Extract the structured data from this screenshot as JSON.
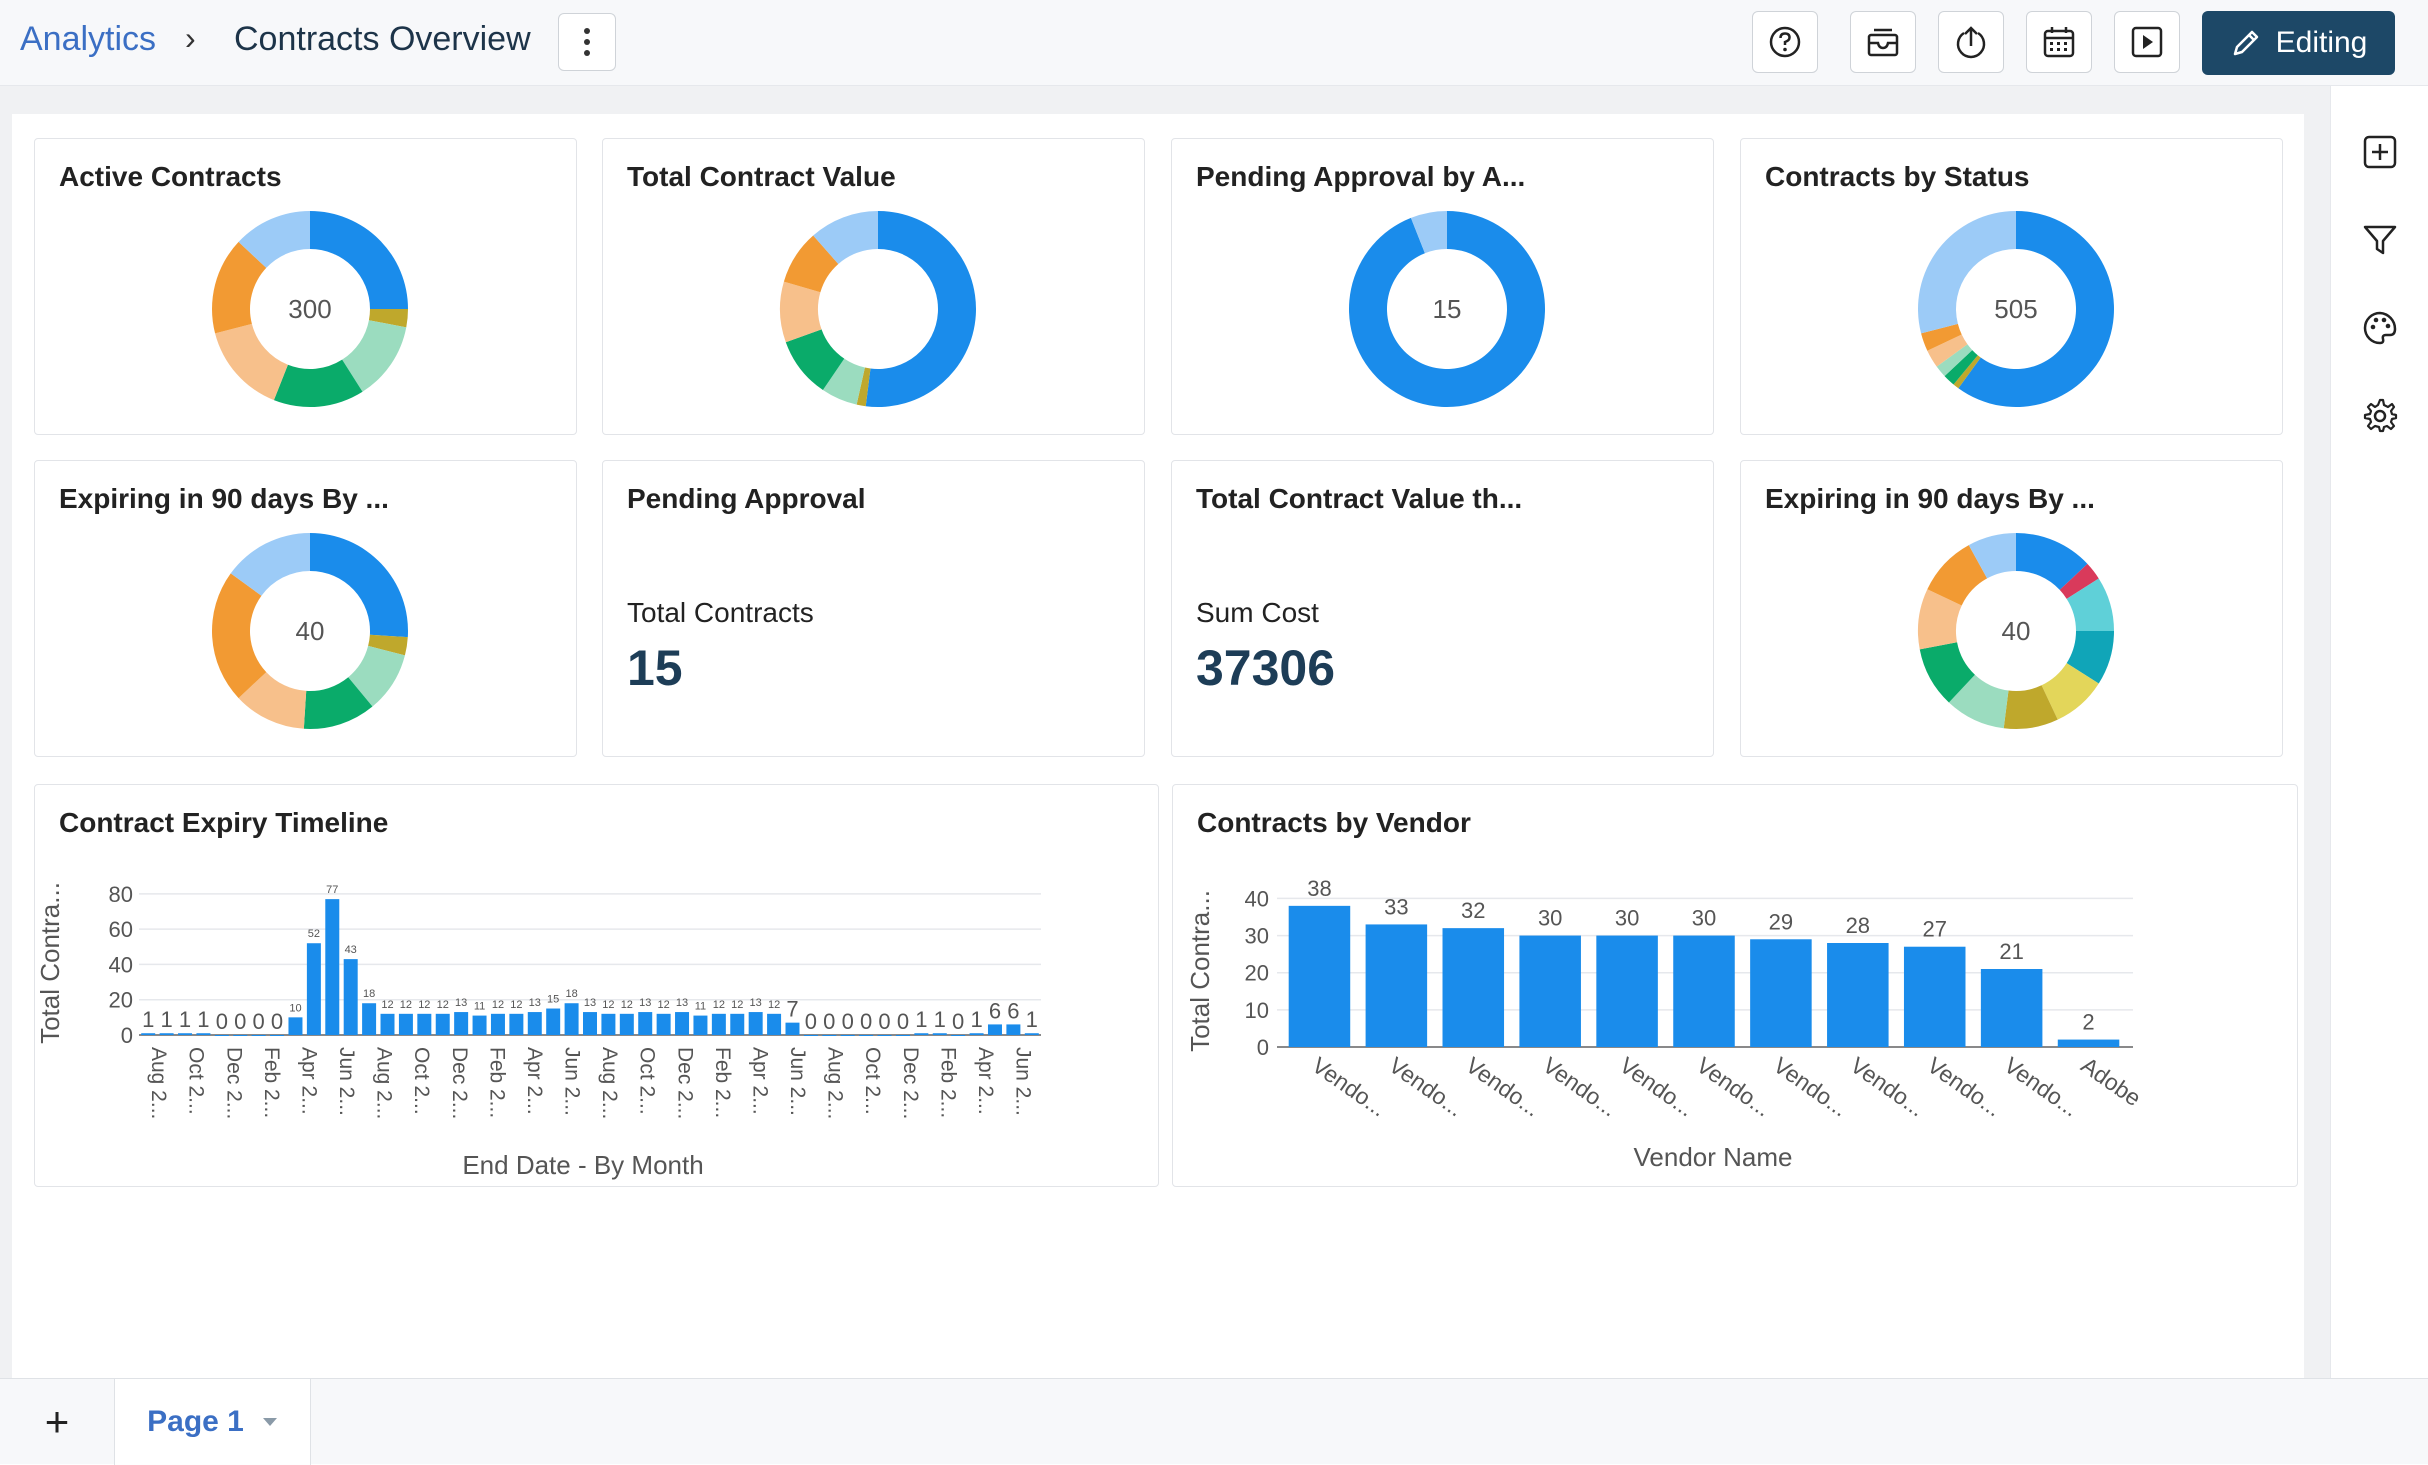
{
  "header": {
    "breadcrumb_link": "Analytics",
    "breadcrumb_sep": "›",
    "page_title": "Contracts Overview",
    "edit_label": "Editing"
  },
  "cards": {
    "active_contracts": {
      "title": "Active Contracts",
      "center": "300"
    },
    "total_contract_value": {
      "title": "Total Contract Value",
      "center": ""
    },
    "pending_by": {
      "title": "Pending Approval by A...",
      "center": "15"
    },
    "by_status": {
      "title": "Contracts by Status",
      "center": "505"
    },
    "expiring_a": {
      "title": "Expiring in 90 days By ...",
      "center": "40"
    },
    "pending_approval": {
      "title": "Pending Approval",
      "label": "Total Contracts",
      "value": "15"
    },
    "total_value_th": {
      "title": "Total Contract Value th...",
      "label": "Sum Cost",
      "value": "37306"
    },
    "expiring_b": {
      "title": "Expiring in 90 days By ...",
      "center": "40"
    },
    "expiry_timeline": {
      "title": "Contract Expiry Timeline"
    },
    "by_vendor": {
      "title": "Contracts by Vendor"
    }
  },
  "footer": {
    "page_tab": "Page 1",
    "add_label": "+"
  },
  "colors": {
    "blue": "#1a8ceb",
    "lightblue": "#9ccbf7",
    "orange": "#f29a33",
    "peach": "#f7c08b",
    "green": "#0aab6a",
    "mint": "#9bdcbf",
    "olive": "#bfa82c",
    "teal": "#10a5b8",
    "cyan": "#5fd0d8",
    "yellow": "#e3d65a",
    "red": "#d93a5b",
    "accent": "#1d4867"
  },
  "chart_data": [
    {
      "type": "pie",
      "id": "active_contracts",
      "title": "Active Contracts",
      "slices": [
        {
          "color": "#1a8ceb",
          "value": 25
        },
        {
          "color": "#bfa82c",
          "value": 3
        },
        {
          "color": "#9bdcbf",
          "value": 13
        },
        {
          "color": "#0aab6a",
          "value": 15
        },
        {
          "color": "#f7c08b",
          "value": 15
        },
        {
          "color": "#f29a33",
          "value": 16
        },
        {
          "color": "#9ccbf7",
          "value": 13
        }
      ]
    },
    {
      "type": "pie",
      "id": "total_contract_value",
      "title": "Total Contract Value",
      "slices": [
        {
          "color": "#1a8ceb",
          "value": 52
        },
        {
          "color": "#bfa82c",
          "value": 1.5
        },
        {
          "color": "#9bdcbf",
          "value": 6
        },
        {
          "color": "#0aab6a",
          "value": 10
        },
        {
          "color": "#f7c08b",
          "value": 10
        },
        {
          "color": "#f29a33",
          "value": 9
        },
        {
          "color": "#9ccbf7",
          "value": 11.5
        }
      ]
    },
    {
      "type": "pie",
      "id": "pending_by",
      "title": "Pending Approval by A...",
      "slices": [
        {
          "color": "#1a8ceb",
          "value": 94
        },
        {
          "color": "#9ccbf7",
          "value": 6
        }
      ]
    },
    {
      "type": "pie",
      "id": "by_status",
      "title": "Contracts by Status",
      "slices": [
        {
          "color": "#1a8ceb",
          "value": 60
        },
        {
          "color": "#bfa82c",
          "value": 1
        },
        {
          "color": "#0aab6a",
          "value": 2
        },
        {
          "color": "#9bdcbf",
          "value": 2
        },
        {
          "color": "#f7c08b",
          "value": 3
        },
        {
          "color": "#f29a33",
          "value": 3
        },
        {
          "color": "#9ccbf7",
          "value": 29
        }
      ]
    },
    {
      "type": "pie",
      "id": "expiring_a",
      "title": "Expiring in 90 days By ...",
      "slices": [
        {
          "color": "#1a8ceb",
          "value": 26
        },
        {
          "color": "#bfa82c",
          "value": 3
        },
        {
          "color": "#9bdcbf",
          "value": 10
        },
        {
          "color": "#0aab6a",
          "value": 12
        },
        {
          "color": "#f7c08b",
          "value": 12
        },
        {
          "color": "#f29a33",
          "value": 22
        },
        {
          "color": "#9ccbf7",
          "value": 15
        }
      ]
    },
    {
      "type": "pie",
      "id": "expiring_b",
      "title": "Expiring in 90 days By ...",
      "slices": [
        {
          "color": "#1a8ceb",
          "value": 13
        },
        {
          "color": "#d93a5b",
          "value": 3
        },
        {
          "color": "#5fd0d8",
          "value": 9
        },
        {
          "color": "#10a5b8",
          "value": 9
        },
        {
          "color": "#e3d65a",
          "value": 9
        },
        {
          "color": "#bfa82c",
          "value": 9
        },
        {
          "color": "#9bdcbf",
          "value": 10
        },
        {
          "color": "#0aab6a",
          "value": 10
        },
        {
          "color": "#f7c08b",
          "value": 10
        },
        {
          "color": "#f29a33",
          "value": 10
        },
        {
          "color": "#9ccbf7",
          "value": 8
        }
      ]
    },
    {
      "type": "bar",
      "id": "expiry_timeline",
      "title": "Contract Expiry Timeline",
      "xlabel": "End Date - By Month",
      "ylabel": "Total Contra...",
      "ylim": [
        0,
        85
      ],
      "yticks": [
        0,
        20,
        40,
        60,
        80
      ],
      "values": [
        1,
        1,
        1,
        1,
        0,
        0,
        0,
        0,
        10,
        52,
        77,
        43,
        18,
        12,
        12,
        12,
        12,
        13,
        11,
        12,
        12,
        13,
        15,
        18,
        13,
        12,
        12,
        13,
        12,
        13,
        11,
        12,
        12,
        13,
        12,
        7,
        0,
        0,
        0,
        0,
        0,
        0,
        1,
        1,
        0,
        1,
        6,
        6,
        1
      ],
      "labels": [
        "1",
        "1",
        "1",
        "1",
        "0",
        "0",
        "0",
        "0",
        "10",
        "52",
        "77",
        "43",
        "18",
        "12",
        "12",
        "12",
        "12",
        "13",
        "11",
        "12",
        "12",
        "13",
        "15",
        "18",
        "13",
        "12",
        "12",
        "13",
        "12",
        "13",
        "11",
        "12",
        "12",
        "13",
        "12",
        "7",
        "0",
        "0",
        "0",
        "0",
        "0",
        "0",
        "1",
        "1",
        "0",
        "1",
        "6",
        "6",
        "1"
      ],
      "tick_labels": [
        "Aug 2...",
        "Oct 2...",
        "Dec 2...",
        "Feb 2...",
        "Apr 2...",
        "Jun 2...",
        "Aug 2...",
        "Oct 2...",
        "Dec 2...",
        "Feb 2...",
        "Apr 2...",
        "Jun 2...",
        "Aug 2...",
        "Oct 2...",
        "Dec 2...",
        "Feb 2...",
        "Apr 2...",
        "Jun 2...",
        "Aug 2...",
        "Oct 2...",
        "Dec 2...",
        "Feb 2...",
        "Apr 2...",
        "Jun 2..."
      ],
      "grid": true
    },
    {
      "type": "bar",
      "id": "by_vendor",
      "title": "Contracts by Vendor",
      "xlabel": "Vendor Name",
      "ylabel": "Total Contra...",
      "ylim": [
        0,
        42
      ],
      "yticks": [
        0,
        10,
        20,
        30,
        40
      ],
      "categories": [
        "Vendo...",
        "Vendo...",
        "Vendo...",
        "Vendo...",
        "Vendo...",
        "Vendo...",
        "Vendo...",
        "Vendo...",
        "Vendo...",
        "Vendo...",
        "Adobe"
      ],
      "values": [
        38,
        33,
        32,
        30,
        30,
        30,
        29,
        28,
        27,
        21,
        2
      ],
      "grid": true
    }
  ]
}
